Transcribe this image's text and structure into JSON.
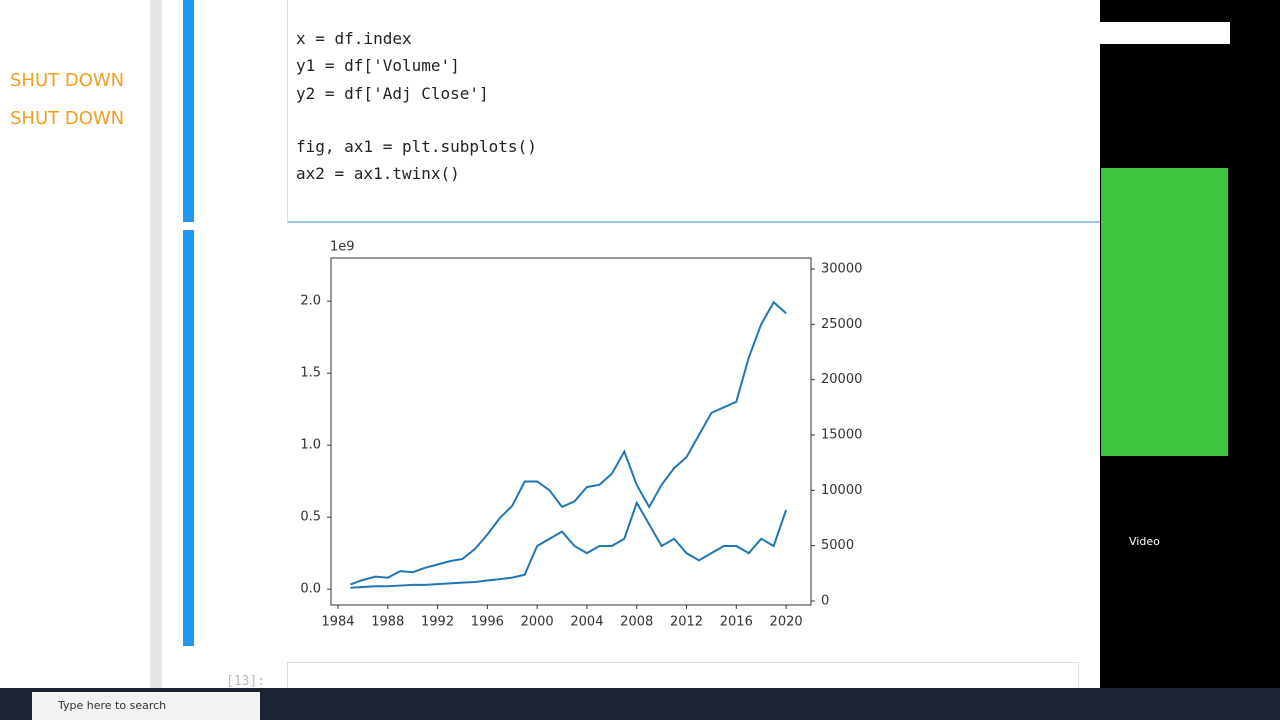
{
  "sidebar": {
    "items": [
      "SHUT DOWN",
      "SHUT DOWN"
    ]
  },
  "code": {
    "lines": [
      "x = df.index",
      "y1 = df['Volume']",
      "y2 = df['Adj Close']",
      "",
      "fig, ax1 = plt.subplots()",
      "ax2 = ax1.twinx()"
    ]
  },
  "next_prompt": "[13]:",
  "side_panel": {
    "video_label": "Video"
  },
  "taskbar": {
    "search": "Type here to search"
  },
  "chart_data": {
    "type": "line",
    "y_offset_label": "1e9",
    "x": [
      1985,
      1986,
      1987,
      1988,
      1989,
      1990,
      1991,
      1992,
      1993,
      1994,
      1995,
      1996,
      1997,
      1998,
      1999,
      2000,
      2001,
      2002,
      2003,
      2004,
      2005,
      2006,
      2007,
      2008,
      2009,
      2010,
      2011,
      2012,
      2013,
      2014,
      2015,
      2016,
      2017,
      2018,
      2019,
      2020
    ],
    "series": [
      {
        "name": "Volume",
        "color": "#1f77b4",
        "axis": "y",
        "values": [
          0.01,
          0.015,
          0.02,
          0.02,
          0.025,
          0.03,
          0.03,
          0.035,
          0.04,
          0.045,
          0.05,
          0.06,
          0.07,
          0.08,
          0.1,
          0.3,
          0.35,
          0.4,
          0.3,
          0.25,
          0.3,
          0.3,
          0.35,
          0.6,
          0.45,
          0.3,
          0.35,
          0.25,
          0.2,
          0.25,
          0.3,
          0.3,
          0.25,
          0.35,
          0.3,
          0.55
        ]
      },
      {
        "name": "Adj Close",
        "color": "#1f77b4",
        "axis": "y2",
        "values": [
          1500,
          1900,
          2200,
          2100,
          2700,
          2600,
          3000,
          3300,
          3600,
          3800,
          4700,
          6000,
          7500,
          8600,
          10800,
          10800,
          10000,
          8500,
          9000,
          10300,
          10500,
          11500,
          13500,
          10500,
          8500,
          10500,
          12000,
          13000,
          15000,
          17000,
          17500,
          18000,
          22000,
          25000,
          27000,
          26000
        ]
      }
    ],
    "xlim": [
      1983.44,
      2022.0
    ],
    "xticks": [
      1984,
      1988,
      1992,
      1996,
      2000,
      2004,
      2008,
      2012,
      2016,
      2020
    ],
    "ylim": [
      -0.11,
      2.3
    ],
    "yticks": [
      {
        "value": 0,
        "label": "0.0"
      },
      0.5,
      {
        "value": 1,
        "label": "1.0"
      },
      1.5,
      {
        "value": 2,
        "label": "2.0"
      }
    ],
    "y2lim": [
      -361,
      30994
    ],
    "y2ticks": [
      0,
      5000,
      10000,
      15000,
      20000,
      25000,
      30000
    ],
    "grid": false
  }
}
